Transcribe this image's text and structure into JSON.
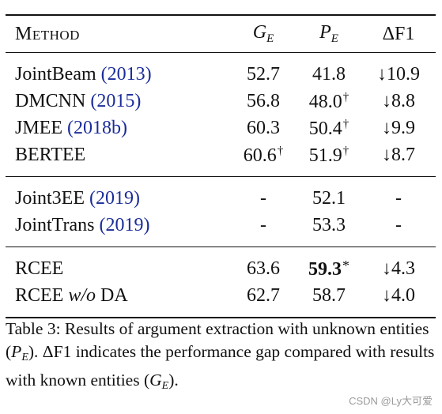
{
  "table": {
    "header": {
      "method": "Method",
      "ge": "G",
      "ge_sub": "E",
      "pe": "P",
      "pe_sub": "E",
      "df1": "ΔF1"
    },
    "groups": [
      [
        {
          "method": "JointBeam",
          "cite": "(2013)",
          "ge": "52.7",
          "ge_mark": "",
          "pe": "41.8",
          "pe_mark": "",
          "pe_bold": false,
          "df1": "↓10.9"
        },
        {
          "method": "DMCNN",
          "cite": "(2015)",
          "ge": "56.8",
          "ge_mark": "",
          "pe": "48.0",
          "pe_mark": "†",
          "pe_bold": false,
          "df1": "↓8.8"
        },
        {
          "method": "JMEE",
          "cite": "(2018b)",
          "ge": "60.3",
          "ge_mark": "",
          "pe": "50.4",
          "pe_mark": "†",
          "pe_bold": false,
          "df1": "↓9.9"
        },
        {
          "method": "BERTEE",
          "cite": "",
          "ge": "60.6",
          "ge_mark": "†",
          "pe": "51.9",
          "pe_mark": "†",
          "pe_bold": false,
          "df1": "↓8.7"
        }
      ],
      [
        {
          "method": "Joint3EE",
          "cite": "(2019)",
          "ge": "-",
          "ge_mark": "",
          "pe": "52.1",
          "pe_mark": "",
          "pe_bold": false,
          "df1": "-"
        },
        {
          "method": "JointTrans",
          "cite": "(2019)",
          "ge": "-",
          "ge_mark": "",
          "pe": "53.3",
          "pe_mark": "",
          "pe_bold": false,
          "df1": "-"
        }
      ],
      [
        {
          "method": "RCEE",
          "cite": "",
          "ge": "63.6",
          "ge_mark": "",
          "pe": "59.3",
          "pe_mark": "*",
          "pe_bold": true,
          "df1": "↓4.3"
        },
        {
          "method": "RCEE",
          "method_italic": "w/o",
          "method_rest": "DA",
          "cite": "",
          "ge": "62.7",
          "ge_mark": "",
          "pe": "58.7",
          "pe_mark": "",
          "pe_bold": false,
          "df1": "↓4.0"
        }
      ]
    ]
  },
  "caption": {
    "part1": "Table 3: Results of argument extraction with unknown entities (",
    "pe": "P",
    "pe_sub": "E",
    "part2": "). ΔF1 indicates the performance gap compared with results with known entities (",
    "ge": "G",
    "ge_sub": "E",
    "part3": ")."
  },
  "watermark": "CSDN @Ly大可爱"
}
